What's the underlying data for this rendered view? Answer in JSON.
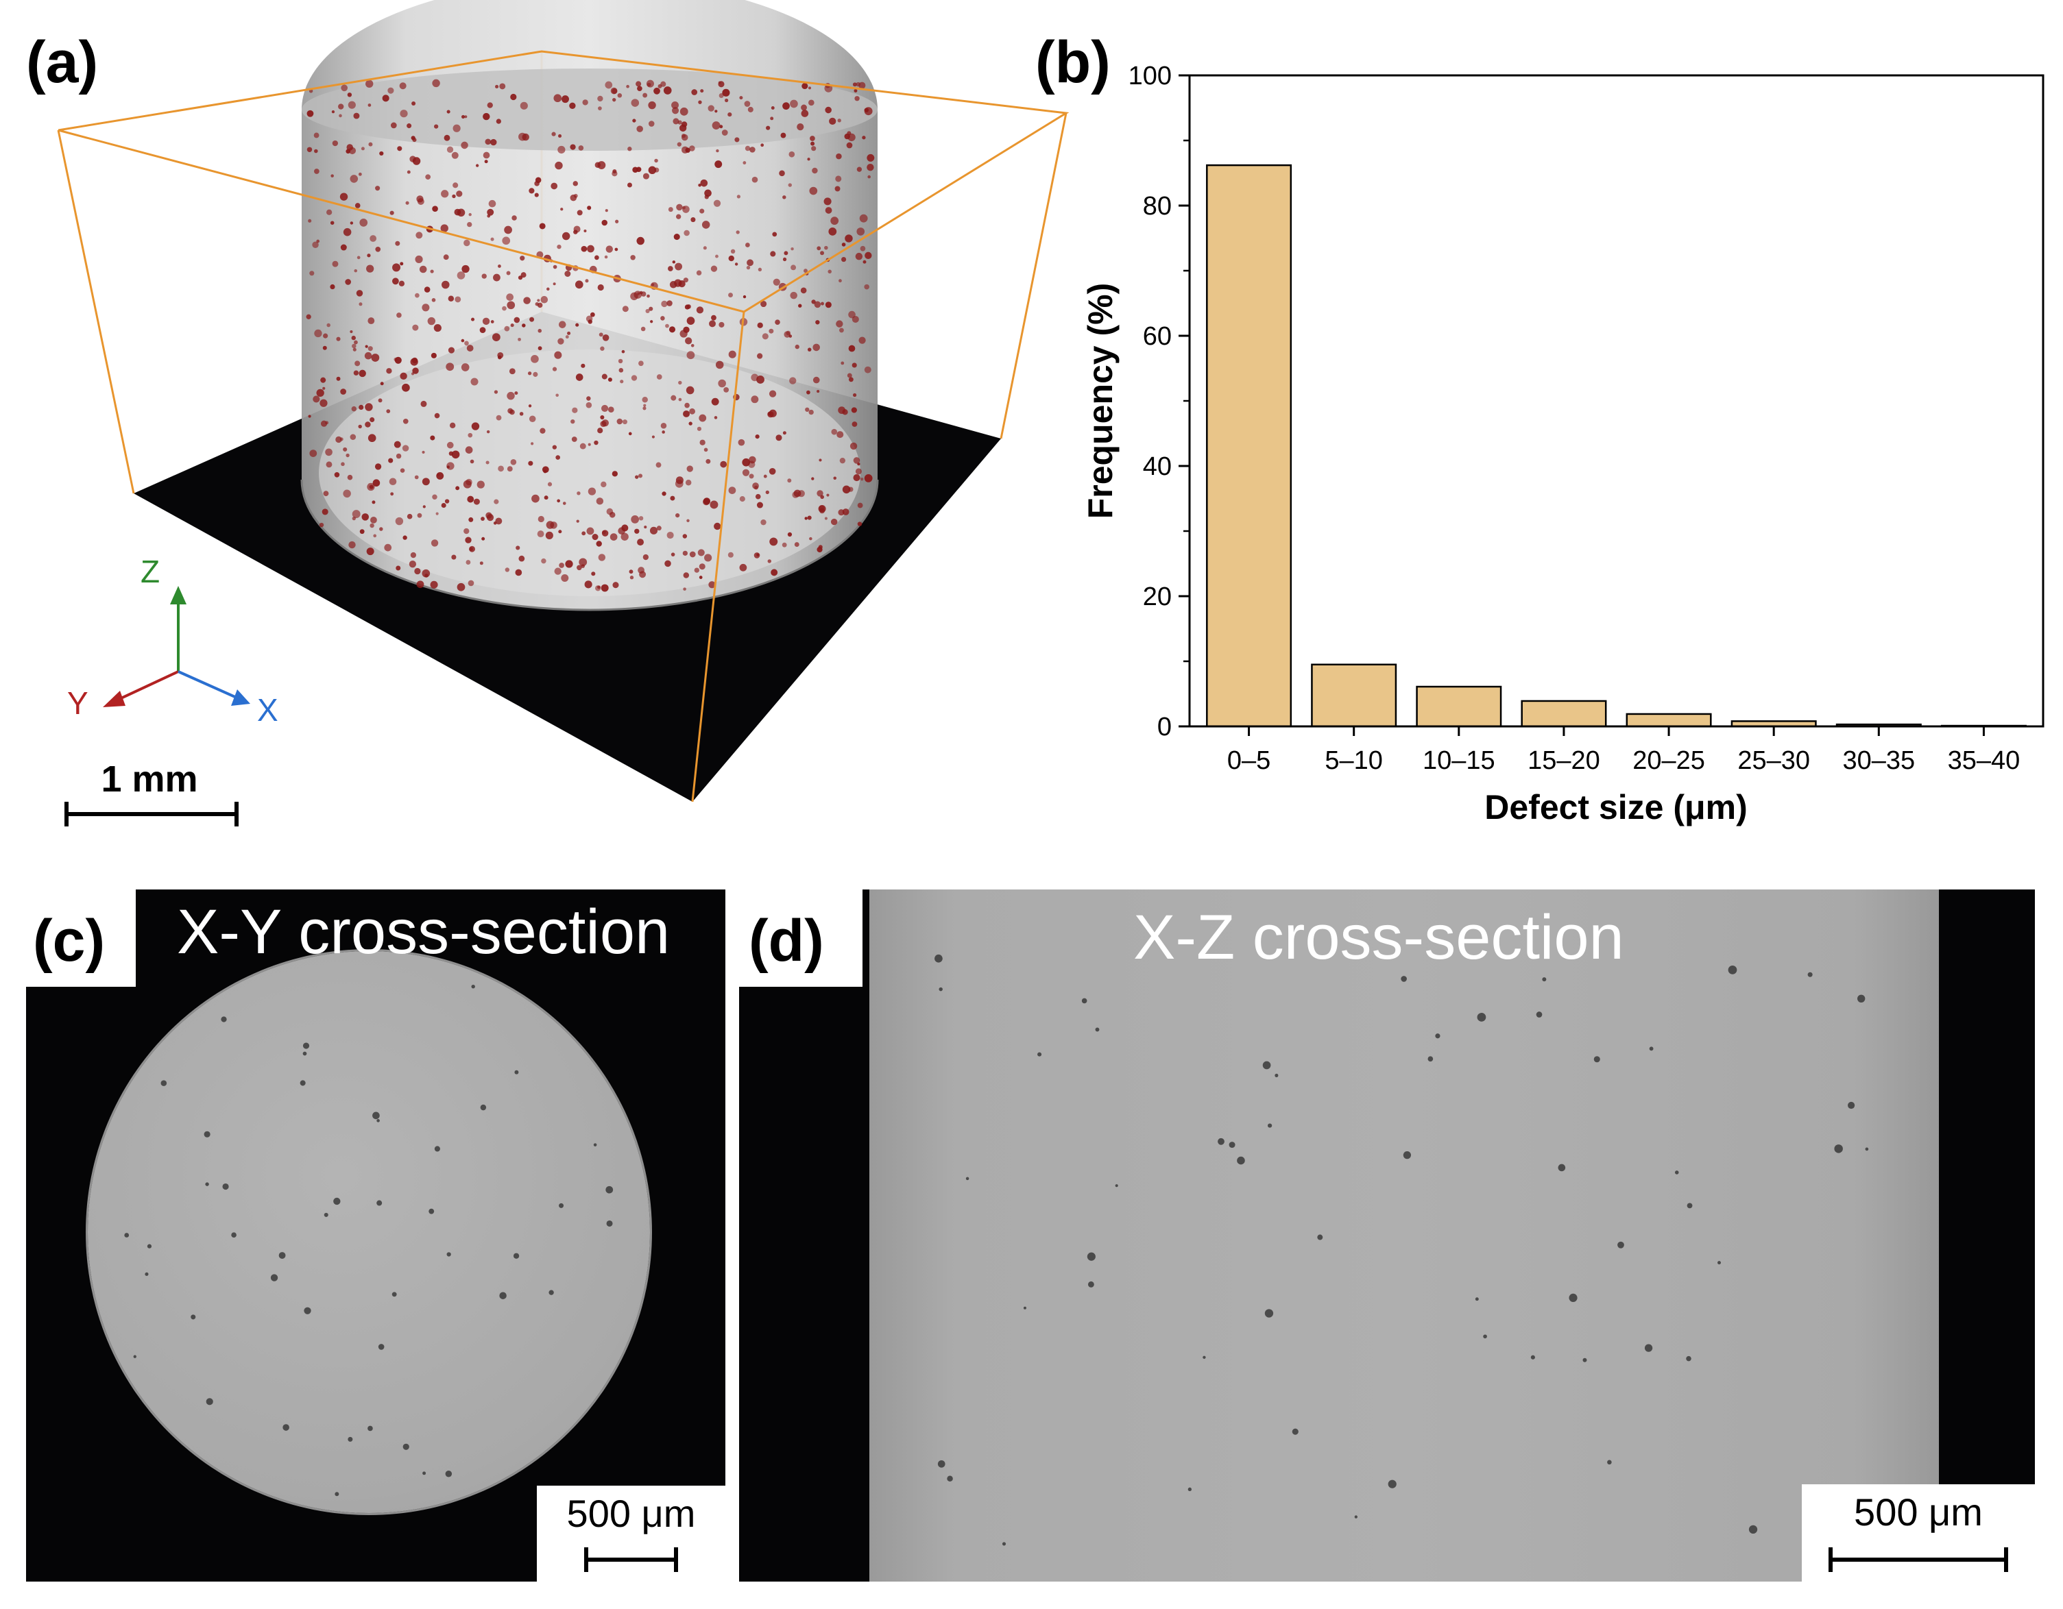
{
  "panels": {
    "a": {
      "label": "(a)",
      "axes": {
        "z": "Z",
        "y": "Y",
        "x": "X"
      },
      "scale_bar": "1 mm",
      "colors": {
        "box": "#e8952e",
        "base": "#060608",
        "defect": "#8b1a1a",
        "cylinder": "#cfcfcf"
      }
    },
    "b": {
      "label": "(b)"
    },
    "c": {
      "label": "(c)",
      "title": "X-Y cross-section",
      "scale_bar": "500 μm"
    },
    "d": {
      "label": "(d)",
      "title": "X-Z cross-section",
      "scale_bar": "500 μm"
    }
  },
  "chart_data": {
    "type": "bar",
    "categories": [
      "0–5",
      "5–10",
      "10–15",
      "15–20",
      "20–25",
      "25–30",
      "30–35",
      "35–40"
    ],
    "values": [
      86.2,
      9.5,
      6.1,
      3.9,
      1.9,
      0.8,
      0.3,
      0.1
    ],
    "xlabel": "Defect size (μm)",
    "ylabel": "Frequency (%)",
    "ylim": [
      0,
      100
    ],
    "yticks": [
      0,
      20,
      40,
      60,
      80,
      100
    ],
    "bar_color": "#e9c589",
    "grid": false
  }
}
